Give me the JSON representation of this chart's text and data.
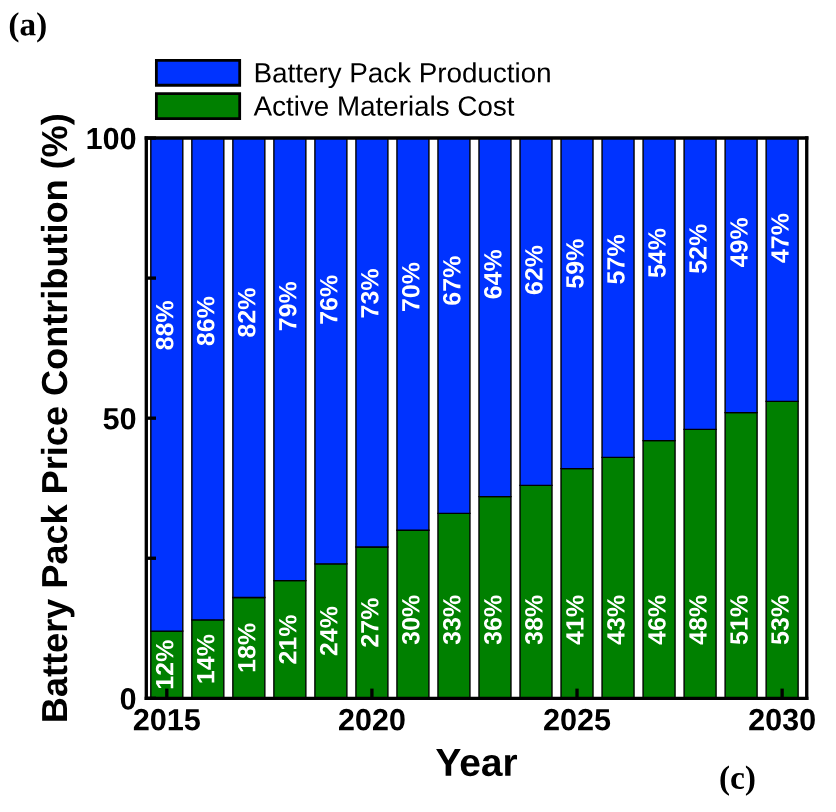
{
  "chart_data": {
    "type": "bar",
    "stacked": true,
    "xlabel": "Year",
    "ylabel": "Battery Pack Price Contribution (%)",
    "x": [
      2015,
      2016,
      2017,
      2018,
      2019,
      2020,
      2021,
      2022,
      2023,
      2024,
      2025,
      2026,
      2027,
      2028,
      2029,
      2030
    ],
    "series": [
      {
        "name": "Active Materials Cost",
        "color": "#008000",
        "values": [
          12,
          14,
          18,
          21,
          24,
          27,
          30,
          33,
          36,
          38,
          41,
          43,
          46,
          48,
          51,
          53
        ],
        "value_labels": [
          "12%",
          "14%",
          "18%",
          "21%",
          "24%",
          "27%",
          "30%",
          "33%",
          "36%",
          "38%",
          "41%",
          "43%",
          "46%",
          "48%",
          "51%",
          "53%"
        ]
      },
      {
        "name": "Battery Pack Production",
        "color": "#0033ff",
        "values": [
          88,
          86,
          82,
          79,
          76,
          73,
          70,
          67,
          64,
          62,
          59,
          57,
          54,
          52,
          49,
          47
        ],
        "value_labels": [
          "88%",
          "86%",
          "82%",
          "79%",
          "76%",
          "73%",
          "70%",
          "67%",
          "64%",
          "62%",
          "59%",
          "57%",
          "54%",
          "52%",
          "49%",
          "47%"
        ]
      }
    ],
    "xlim": [
      2014.5,
      2030.6
    ],
    "xticks": [
      2015,
      2020,
      2025,
      2030
    ],
    "ylim": [
      0,
      100
    ],
    "yticks": [
      0,
      {
        "value": 25,
        "label": null
      },
      50,
      {
        "value": 75,
        "label": null
      },
      100
    ],
    "grid": false,
    "legend": "top left",
    "annotations": [
      "(a)",
      "(c)"
    ]
  }
}
